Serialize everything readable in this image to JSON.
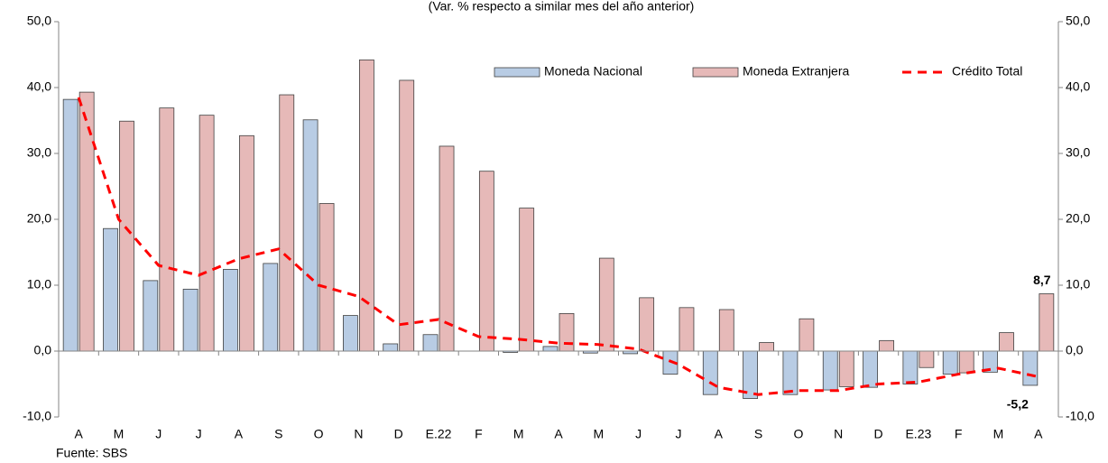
{
  "chart_data": {
    "type": "bar",
    "subtitle": "(Var. % respecto a similar mes del año anterior)",
    "source": "Fuente: SBS",
    "categories": [
      "A",
      "M",
      "J",
      "J",
      "A",
      "S",
      "O",
      "N",
      "D",
      "E.22",
      "F",
      "M",
      "A",
      "M",
      "J",
      "J",
      "A",
      "S",
      "O",
      "N",
      "D",
      "E.23",
      "F",
      "M",
      "A"
    ],
    "series": [
      {
        "name": "Moneda Nacional",
        "type": "bar",
        "color": "#b8cce4",
        "values": [
          38.2,
          18.6,
          10.7,
          9.4,
          12.4,
          13.3,
          35.1,
          5.4,
          1.1,
          2.5,
          0.0,
          -0.2,
          0.7,
          -0.3,
          -0.4,
          -3.5,
          -6.6,
          -7.2,
          -6.6,
          -5.9,
          -5.5,
          -5.0,
          -3.5,
          -3.2,
          -5.2
        ],
        "value_labels": [
          null,
          null,
          null,
          null,
          null,
          null,
          null,
          null,
          null,
          null,
          null,
          null,
          null,
          null,
          null,
          null,
          null,
          null,
          null,
          null,
          null,
          null,
          null,
          null,
          "-5,2"
        ]
      },
      {
        "name": "Moneda Extranjera",
        "type": "bar",
        "color": "#e6b9b8",
        "values": [
          39.3,
          34.9,
          36.9,
          35.8,
          32.7,
          38.9,
          22.4,
          44.2,
          41.1,
          31.1,
          27.3,
          21.7,
          5.7,
          14.1,
          8.1,
          6.6,
          6.3,
          1.3,
          4.9,
          -5.4,
          1.6,
          -2.5,
          -3.3,
          2.8,
          8.7
        ],
        "value_labels": [
          null,
          null,
          null,
          null,
          null,
          null,
          null,
          null,
          null,
          null,
          null,
          null,
          null,
          null,
          null,
          null,
          null,
          null,
          null,
          null,
          null,
          null,
          null,
          null,
          "8,7"
        ]
      },
      {
        "name": "Crédito Total",
        "type": "line",
        "color": "#ff0000",
        "values": [
          38.5,
          20.0,
          13.0,
          11.5,
          14.0,
          15.5,
          10.0,
          8.3,
          4.0,
          4.8,
          2.2,
          1.8,
          1.2,
          1.0,
          0.3,
          -2.0,
          -5.5,
          -6.6,
          -6.0,
          -6.0,
          -5.0,
          -4.7,
          -3.5,
          -2.6,
          -3.9
        ]
      }
    ],
    "ylim": [
      -10,
      50
    ],
    "yticks": [
      {
        "value": -10,
        "label": "-10,0"
      },
      {
        "value": 0,
        "label": "0,0"
      },
      {
        "value": 10,
        "label": "10,0"
      },
      {
        "value": 20,
        "label": "20,0"
      },
      {
        "value": 30,
        "label": "30,0"
      },
      {
        "value": 40,
        "label": "40,0"
      },
      {
        "value": 50,
        "label": "50,0"
      }
    ],
    "y2lim": [
      -10,
      50
    ],
    "y2ticks": [
      {
        "value": -10,
        "label": "-10,0"
      },
      {
        "value": 0,
        "label": "0,0"
      },
      {
        "value": 10,
        "label": "10,0"
      },
      {
        "value": 20,
        "label": "20,0"
      },
      {
        "value": 30,
        "label": "30,0"
      },
      {
        "value": 40,
        "label": "40,0"
      },
      {
        "value": 50,
        "label": "50,0"
      }
    ],
    "legend": "top-right"
  }
}
